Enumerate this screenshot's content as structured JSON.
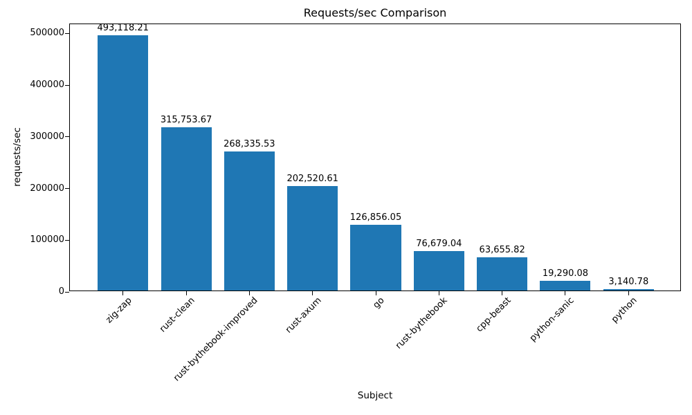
{
  "chart_data": {
    "type": "bar",
    "title": "Requests/sec Comparison",
    "xlabel": "Subject",
    "ylabel": "requests/sec",
    "categories": [
      "zig-zap",
      "rust-clean",
      "rust-bythebook-improved",
      "rust-axum",
      "go",
      "rust-bythebook",
      "cpp-beast",
      "python-sanic",
      "python"
    ],
    "values": [
      493118.21,
      315753.67,
      268335.53,
      202520.61,
      126856.05,
      76679.04,
      63655.82,
      19290.08,
      3140.78
    ],
    "bar_labels": [
      "493,118.21",
      "315,753.67",
      "268,335.53",
      "202,520.61",
      "126,856.05",
      "76,679.04",
      "63,655.82",
      "19,290.08",
      "3,140.78"
    ],
    "y_ticks": [
      0,
      100000,
      200000,
      300000,
      400000,
      500000
    ],
    "y_tick_labels": [
      "0",
      "100000",
      "200000",
      "300000",
      "400000",
      "500000"
    ],
    "ylim": [
      0,
      517774
    ],
    "bar_color": "#1f77b4",
    "axis_color": "#000000",
    "background_color": "#ffffff",
    "grid": false,
    "legend": null,
    "x_tick_rotation_deg": 45
  }
}
